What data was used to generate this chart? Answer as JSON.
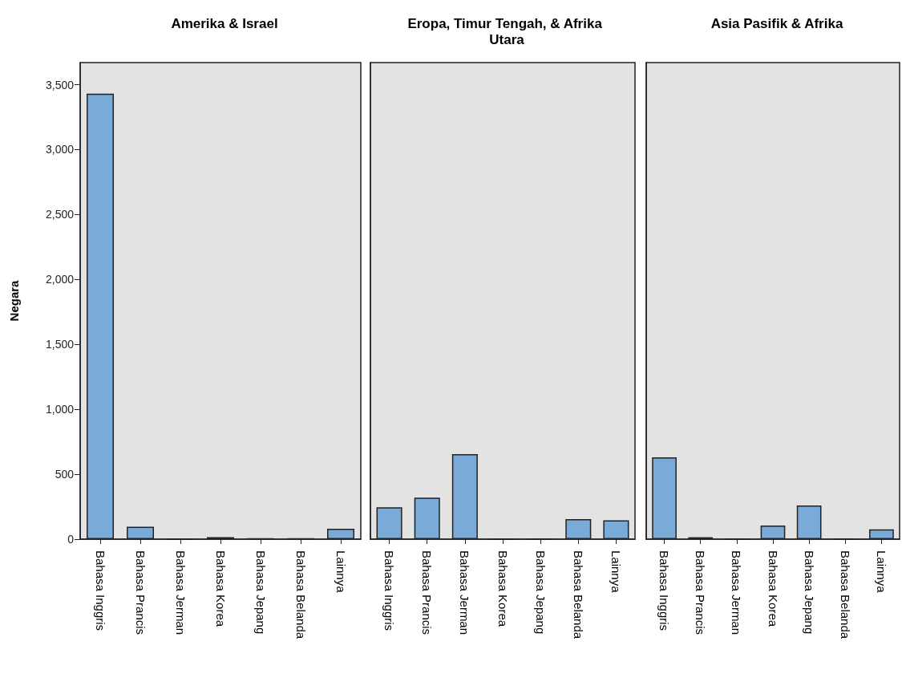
{
  "chart_data": [
    {
      "type": "bar",
      "title": "Amerika & Israel",
      "ylabel": "Negara",
      "categories": [
        "Bahasa Inggris",
        "Bahasa Prancis",
        "Bahasa Jerman",
        "Bahasa Korea",
        "Bahasa Jepang",
        "Bahasa Belanda",
        "Lainnya"
      ],
      "values": [
        3430,
        95,
        0,
        15,
        5,
        5,
        80
      ],
      "color": "#79aad8",
      "ylim": [
        0,
        3670
      ],
      "yticks": [
        0,
        500,
        {
          "value": 1000,
          "label": "1,000"
        },
        {
          "value": 1500,
          "label": "1,500"
        },
        {
          "value": 2000,
          "label": "2,000"
        },
        {
          "value": 2500,
          "label": "2,500"
        },
        {
          "value": 3000,
          "label": "3,000"
        },
        {
          "value": 3500,
          "label": "3,500"
        }
      ],
      "grid": false
    },
    {
      "type": "bar",
      "title": "Eropa, Timur Tengah, & Afrika Utara",
      "categories": [
        "Bahasa Inggris",
        "Bahasa Prancis",
        "Bahasa Jerman",
        "Bahasa Korea",
        "Bahasa Jepang",
        "Bahasa Belanda",
        "Lainnya"
      ],
      "values": [
        245,
        320,
        655,
        0,
        2,
        155,
        145
      ],
      "color": "#79aad8",
      "ylim": [
        0,
        3670
      ],
      "tick_labels": "x",
      "grid": false
    },
    {
      "type": "bar",
      "title": "Asia Pasifik & Afrika",
      "categories": [
        "Bahasa Inggris",
        "Bahasa Prancis",
        "Bahasa Jerman",
        "Bahasa Korea",
        "Bahasa Jepang",
        "Bahasa Belanda",
        "Lainnya"
      ],
      "values": [
        630,
        15,
        3,
        105,
        260,
        3,
        75
      ],
      "color": "#79aad8",
      "ylim": [
        0,
        3670
      ],
      "tick_labels": "x",
      "grid": false
    }
  ]
}
